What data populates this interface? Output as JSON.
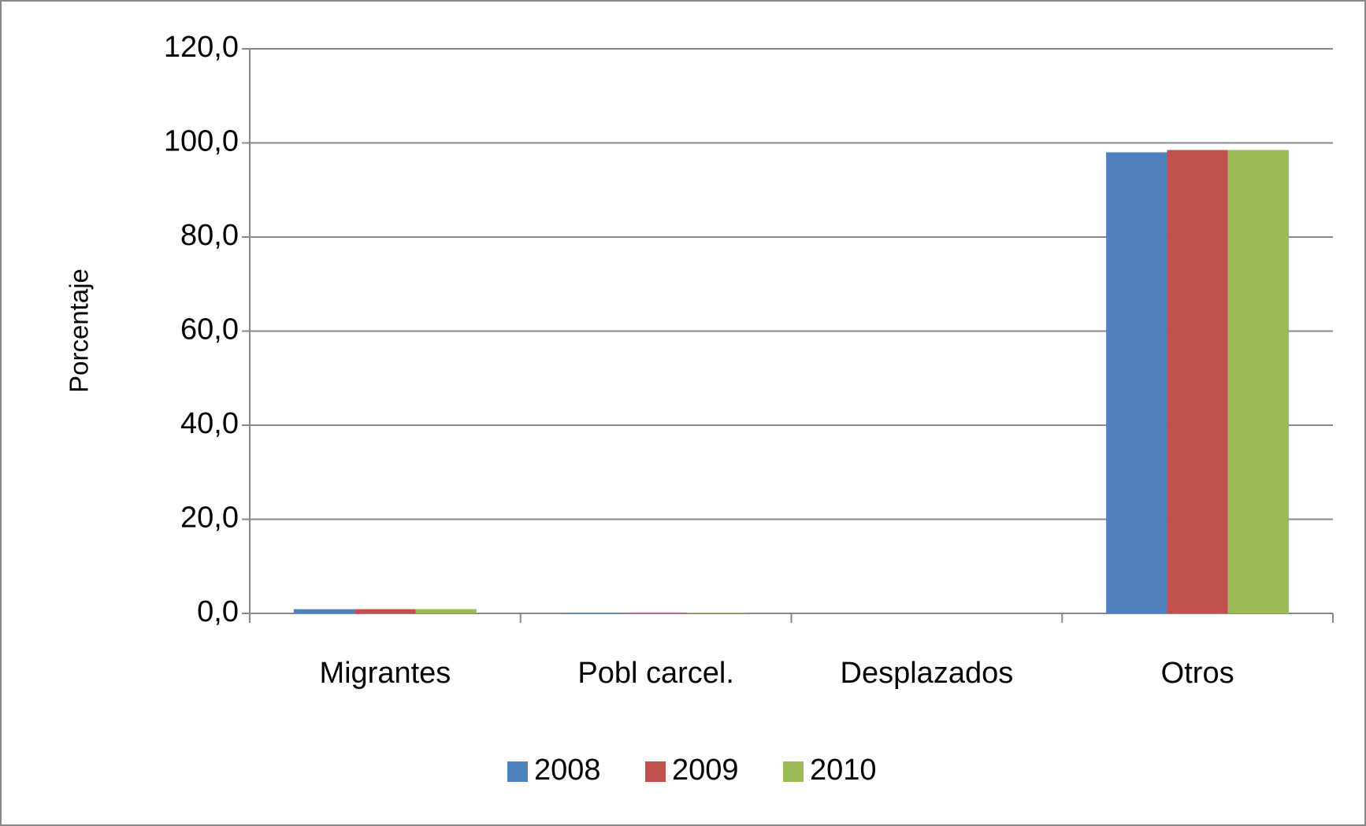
{
  "chart_data": {
    "type": "bar",
    "y_axis_label": "Porcentaje",
    "categories": [
      "Migrantes",
      "Pobl carcel.",
      "Desplazados",
      "Otros"
    ],
    "series": [
      {
        "name": "2008",
        "color": "#4f81bd",
        "values": [
          0.9,
          0.1,
          0.0,
          98.0
        ]
      },
      {
        "name": "2009",
        "color": "#c0504d",
        "values": [
          0.9,
          0.1,
          0.0,
          98.5
        ]
      },
      {
        "name": "2010",
        "color": "#9bbb59",
        "values": [
          0.9,
          0.1,
          0.0,
          98.5
        ]
      }
    ],
    "ylim": [
      0,
      120
    ],
    "yticks": [
      {
        "value": 0,
        "label": "0,0"
      },
      {
        "value": 20,
        "label": "20,0"
      },
      {
        "value": 40,
        "label": "40,0"
      },
      {
        "value": 60,
        "label": "60,0"
      },
      {
        "value": 80,
        "label": "80,0"
      },
      {
        "value": 100,
        "label": "100,0"
      },
      {
        "value": 120,
        "label": "120,0"
      }
    ],
    "grid": true,
    "legend": "bottom"
  }
}
